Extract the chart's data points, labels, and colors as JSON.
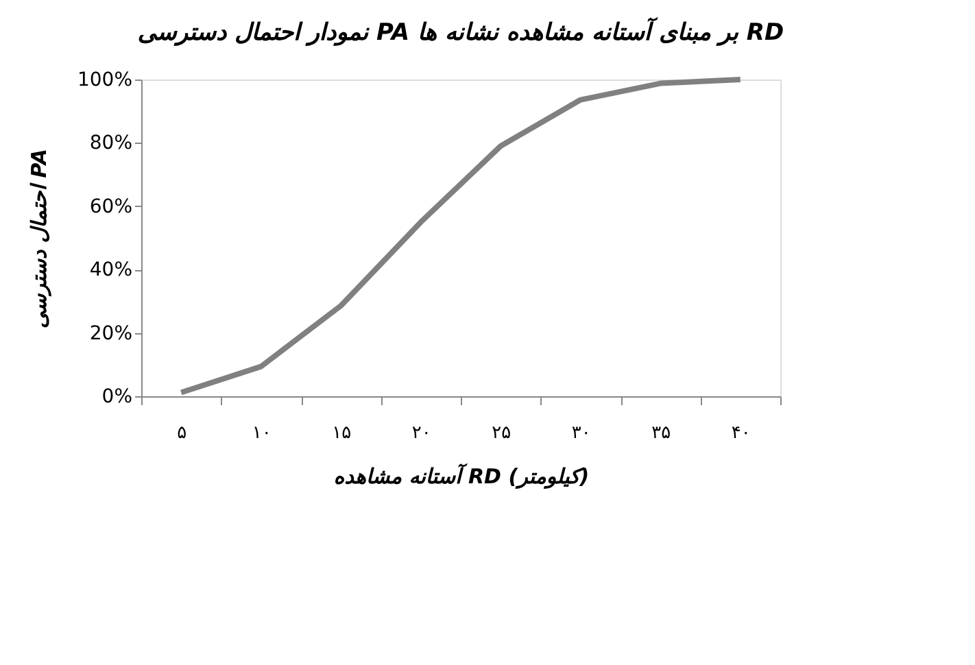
{
  "chart_data": {
    "type": "line",
    "title": "نمودار احتمال دسترسی PA بر مبنای آستانه مشاهده نشانه ها RD",
    "xlabel": "آستانه مشاهده RD (کیلومتر)",
    "ylabel": "احتمال دسترسی PA",
    "categories": [
      "۵",
      "۱۰",
      "۱۵",
      "۲۰",
      "۲۵",
      "۳۰",
      "۳۵",
      "۴۰"
    ],
    "series": [
      {
        "color": "#808080",
        "values": [
          1.2,
          9.4,
          28.6,
          55,
          79,
          93.6,
          98.8,
          100
        ]
      }
    ],
    "ylim": [
      0,
      100
    ],
    "yticks": [
      {
        "value": 0,
        "label": "0%"
      },
      {
        "value": 20,
        "label": "20%"
      },
      {
        "value": 40,
        "label": "40%"
      },
      {
        "value": 60,
        "label": "60%"
      },
      {
        "value": 80,
        "label": "80%"
      },
      {
        "value": 100,
        "label": "100%"
      }
    ],
    "grid": false,
    "marker": "none",
    "line_style": "solid"
  }
}
